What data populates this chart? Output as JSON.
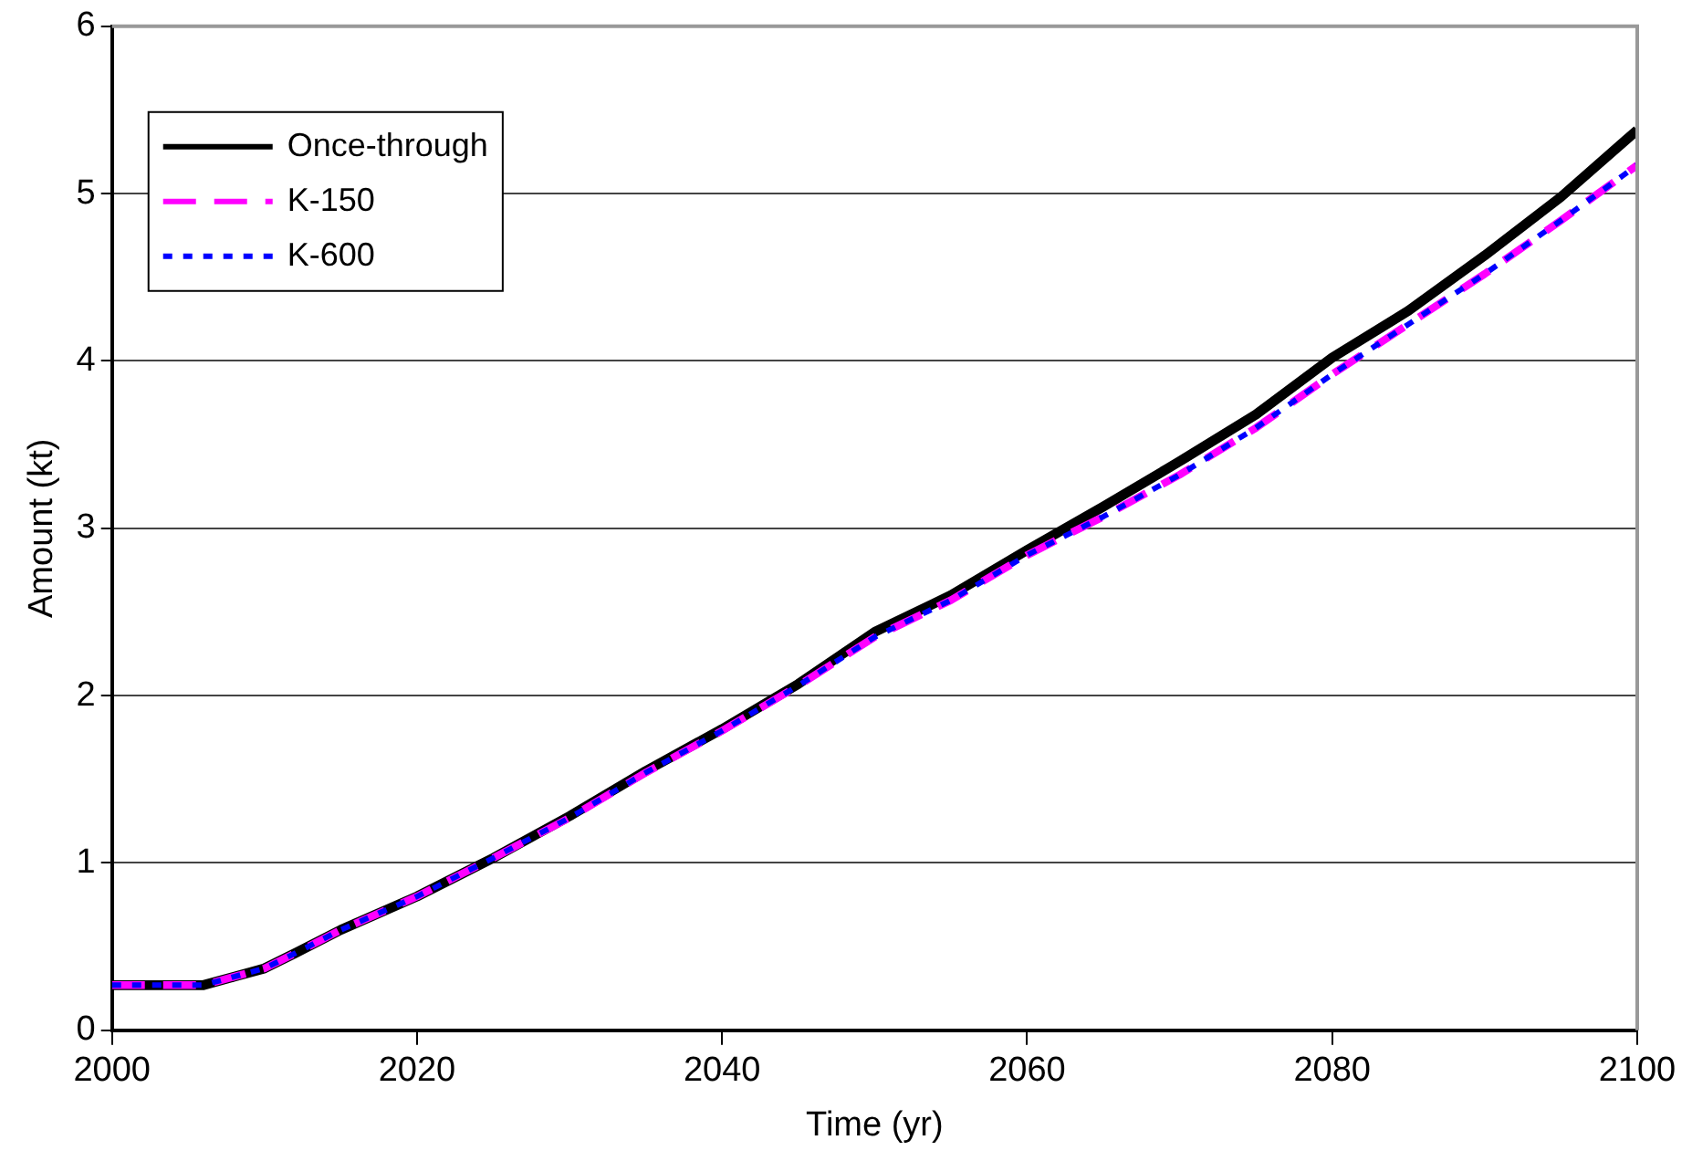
{
  "chart_data": {
    "type": "line",
    "xlabel": "Time (yr)",
    "ylabel": "Amount (kt)",
    "x": [
      2000,
      2006,
      2008,
      2010,
      2012,
      2015,
      2020,
      2025,
      2030,
      2035,
      2040,
      2045,
      2050,
      2055,
      2060,
      2065,
      2070,
      2075,
      2080,
      2085,
      2090,
      2095,
      2100
    ],
    "series": [
      {
        "name": "Once-through",
        "color": "#000000",
        "line_style": "solid",
        "values": [
          0.27,
          0.27,
          0.32,
          0.37,
          0.46,
          0.6,
          0.8,
          1.03,
          1.28,
          1.55,
          1.8,
          2.07,
          2.38,
          2.6,
          2.87,
          3.13,
          3.4,
          3.68,
          4.02,
          4.3,
          4.63,
          4.98,
          5.38
        ]
      },
      {
        "name": "K-150",
        "color": "#ff00ff",
        "line_style": "dashed",
        "values": [
          0.27,
          0.27,
          0.32,
          0.37,
          0.46,
          0.6,
          0.8,
          1.03,
          1.27,
          1.54,
          1.79,
          2.06,
          2.35,
          2.57,
          2.84,
          3.07,
          3.32,
          3.6,
          3.92,
          4.22,
          4.52,
          4.84,
          5.17
        ]
      },
      {
        "name": "K-600",
        "color": "#0000ff",
        "line_style": "dotted",
        "values": [
          0.27,
          0.27,
          0.32,
          0.37,
          0.46,
          0.6,
          0.8,
          1.03,
          1.27,
          1.54,
          1.79,
          2.06,
          2.35,
          2.57,
          2.84,
          3.07,
          3.32,
          3.6,
          3.92,
          4.22,
          4.52,
          4.84,
          5.17
        ]
      }
    ],
    "xlim": [
      2000,
      2100
    ],
    "xticks": [
      2000,
      2020,
      2040,
      2060,
      2080,
      2100
    ],
    "ylim": [
      0,
      6
    ],
    "yticks": [
      0,
      1,
      2,
      3,
      4,
      5,
      6
    ],
    "grid": "y",
    "legend": "top left",
    "marker": "none"
  }
}
